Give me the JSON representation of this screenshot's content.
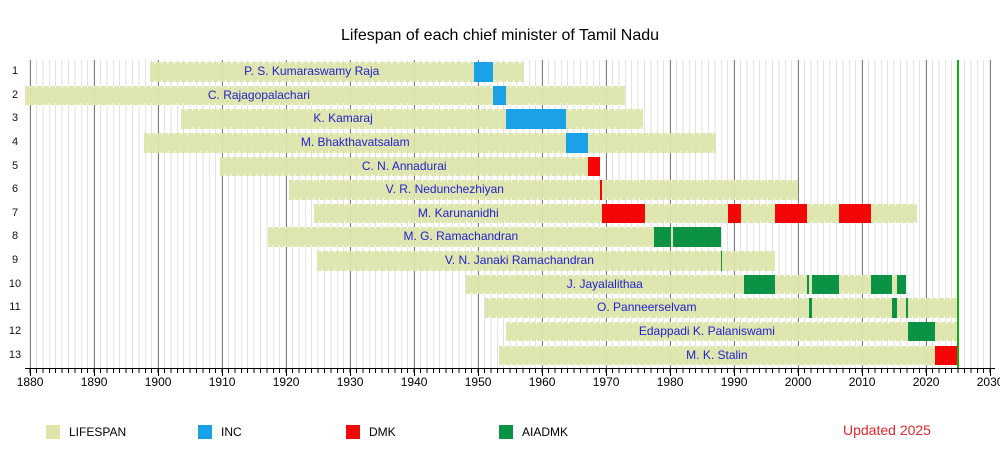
{
  "title": "Lifespan of each chief minister of Tamil Nadu",
  "updated_note": "Updated 2025",
  "colors": {
    "lifespan": "#dee4aa",
    "inc": "#1ba1e8",
    "dmk": "#f50505",
    "aiadmk": "#0c9245",
    "today_line": "#0cb10c",
    "name_label": "#2222cc",
    "updated_note": "#e8252d",
    "grid_minor": "#e2e2e2",
    "grid_major": "#7a7a7a"
  },
  "legend": [
    {
      "label": "LIFESPAN",
      "color_key": "lifespan"
    },
    {
      "label": "INC",
      "color_key": "inc"
    },
    {
      "label": "DMK",
      "color_key": "dmk"
    },
    {
      "label": "AIADMK",
      "color_key": "aiadmk"
    }
  ],
  "chart_data": {
    "type": "timeline",
    "title": "Lifespan of each chief minister of Tamil Nadu",
    "x_axis": {
      "min": 1879.2,
      "max": 2030.8,
      "major_tick_step": 10,
      "minor_tick_step": 1,
      "tick_labels": [
        "1880",
        "1890",
        "1900",
        "1910",
        "1920",
        "1930",
        "1940",
        "1950",
        "1960",
        "1970",
        "1980",
        "1990",
        "2000",
        "2010",
        "2020",
        "2030"
      ]
    },
    "today_year": 2025,
    "rows": [
      {
        "n": 1,
        "name": "P. S. Kumaraswamy Raja",
        "life": [
          1898.7,
          1957.1
        ],
        "terms": [
          {
            "party": "INC",
            "span": [
              1949.3,
              1952.3
            ]
          }
        ]
      },
      {
        "n": 2,
        "name": "C. Rajagopalachari",
        "life": [
          1878.9,
          1973.0
        ],
        "terms": [
          {
            "party": "INC",
            "span": [
              1952.3,
              1954.3
            ]
          }
        ]
      },
      {
        "n": 3,
        "name": "K. Kamaraj",
        "life": [
          1903.5,
          1975.8
        ],
        "terms": [
          {
            "party": "INC",
            "span": [
              1954.3,
              1963.8
            ]
          }
        ]
      },
      {
        "n": 4,
        "name": "M. Bhakthavatsalam",
        "life": [
          1897.8,
          1987.1
        ],
        "terms": [
          {
            "party": "INC",
            "span": [
              1963.8,
              1967.2
            ]
          }
        ]
      },
      {
        "n": 5,
        "name": "C. N. Annadurai",
        "life": [
          1909.7,
          1969.1
        ],
        "terms": [
          {
            "party": "DMK",
            "span": [
              1967.2,
              1969.1
            ]
          }
        ]
      },
      {
        "n": 6,
        "name": "V. R. Nedunchezhiyan",
        "life": [
          1920.5,
          2000.0
        ],
        "terms": [
          {
            "party": "DMK",
            "span": [
              1969.1,
              1969.4
            ]
          }
        ]
      },
      {
        "n": 7,
        "name": "M. Karunanidhi",
        "life": [
          1924.4,
          2018.6
        ],
        "terms": [
          {
            "party": "DMK",
            "span": [
              1969.4,
              1976.1
            ]
          },
          {
            "party": "DMK",
            "span": [
              1989.1,
              1991.1
            ]
          },
          {
            "party": "DMK",
            "span": [
              1996.4,
              2001.4
            ]
          },
          {
            "party": "DMK",
            "span": [
              2006.4,
              2011.4
            ]
          }
        ]
      },
      {
        "n": 8,
        "name": "M. G. Ramachandran",
        "life": [
          1917.1,
          1988.0
        ],
        "terms": [
          {
            "party": "AIADMK",
            "span": [
              1977.5,
              1980.1
            ]
          },
          {
            "party": "AIADMK",
            "span": [
              1980.5,
              1988.0
            ]
          }
        ]
      },
      {
        "n": 9,
        "name": "V. N. Janaki Ramachandran",
        "life": [
          1924.9,
          1996.4
        ],
        "terms": [
          {
            "party": "AIADMK",
            "span": [
              1988.0,
              1988.1
            ]
          }
        ]
      },
      {
        "n": 10,
        "name": "J. Jayalalithaa",
        "life": [
          1948.1,
          2016.9
        ],
        "terms": [
          {
            "party": "AIADMK",
            "span": [
              1991.5,
              1996.4
            ]
          },
          {
            "party": "AIADMK",
            "span": [
              2001.4,
              2001.7
            ]
          },
          {
            "party": "AIADMK",
            "span": [
              2002.2,
              2006.4
            ]
          },
          {
            "party": "AIADMK",
            "span": [
              2011.4,
              2014.7
            ]
          },
          {
            "party": "AIADMK",
            "span": [
              2015.4,
              2016.9
            ]
          }
        ]
      },
      {
        "n": 11,
        "name": "O. Panneerselvam",
        "life": [
          1951.0,
          2025.0
        ],
        "terms": [
          {
            "party": "AIADMK",
            "span": [
              2001.7,
              2002.2
            ]
          },
          {
            "party": "AIADMK",
            "span": [
              2014.7,
              2015.4
            ]
          },
          {
            "party": "AIADMK",
            "span": [
              2016.9,
              2017.1
            ]
          }
        ]
      },
      {
        "n": 12,
        "name": "Edappadi K. Palaniswami",
        "life": [
          1954.4,
          2025.0
        ],
        "terms": [
          {
            "party": "AIADMK",
            "span": [
              2017.1,
              2021.4
            ]
          }
        ]
      },
      {
        "n": 13,
        "name": "M. K. Stalin",
        "life": [
          1953.2,
          2025.0
        ],
        "terms": [
          {
            "party": "DMK",
            "span": [
              2021.4,
              2025.0
            ]
          }
        ]
      }
    ]
  }
}
